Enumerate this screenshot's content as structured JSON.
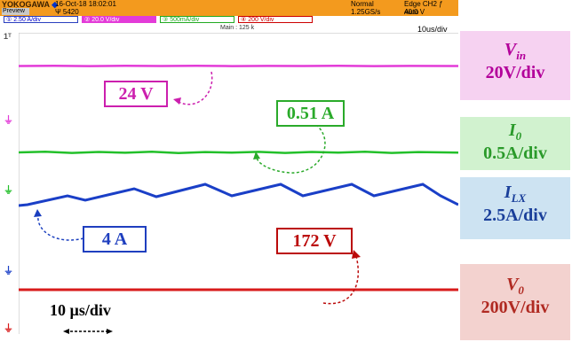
{
  "header": {
    "brand": "YOKOGAWA",
    "preview": "Preview",
    "date": "16-Oct-18 18:02:01",
    "record": "5420",
    "mode": "Normal",
    "sample_rate": "1.25GS/s",
    "trigger": "Edge CH2 ƒ 40.0 V",
    "trigger_mode": "Auto",
    "channels": [
      {
        "label": "① 2.50 A/div",
        "bg": "#ffffff",
        "fg": "#0000cc",
        "border": "#2a3fbf"
      },
      {
        "label": "② 20.0 V/div",
        "bg": "#e33bd8",
        "fg": "#ffffff",
        "border": "#e33bd8"
      },
      {
        "label": "③ 500mA/div",
        "bg": "#ffffff",
        "fg": "#22aa22",
        "border": "#22aa22"
      },
      {
        "label": "④ 200 V/div",
        "bg": "#ffffff",
        "fg": "#cc0000",
        "border": "#cc0000"
      }
    ],
    "main_label": "Main : 125 k",
    "time_div": "10us/div"
  },
  "callouts": {
    "vin": {
      "text": "24 V",
      "color": "#cc1fae"
    },
    "io": {
      "text": "0.51 A",
      "color": "#2aaa2a"
    },
    "ilx": {
      "text": "4 A",
      "color": "#1f3fbf"
    },
    "vo": {
      "text": "172 V",
      "color": "#bb0a0a"
    }
  },
  "scale_text": "10 µs/div",
  "legend": {
    "vin": {
      "name_main": "V",
      "name_sub": "in",
      "scale": "20V/div",
      "bg": "#f6d2f1",
      "fg": "#b3009a"
    },
    "io": {
      "name_main": "I",
      "name_sub": "0",
      "scale": "0.5A/div",
      "bg": "#d1f2cf",
      "fg": "#2a9a2a"
    },
    "ilx": {
      "name_main": "I",
      "name_sub": "LX",
      "scale": "2.5A/div",
      "bg": "#cde3f2",
      "fg": "#1a3f9a"
    },
    "vo": {
      "name_main": "V",
      "name_sub": "0",
      "scale": "200V/div",
      "bg": "#f3d2cf",
      "fg": "#b02a22"
    }
  },
  "trace_colors": {
    "vin": "#e33bd8",
    "io": "#23c02a",
    "ilx": "#1a3fc7",
    "vo": "#d81b1b"
  }
}
